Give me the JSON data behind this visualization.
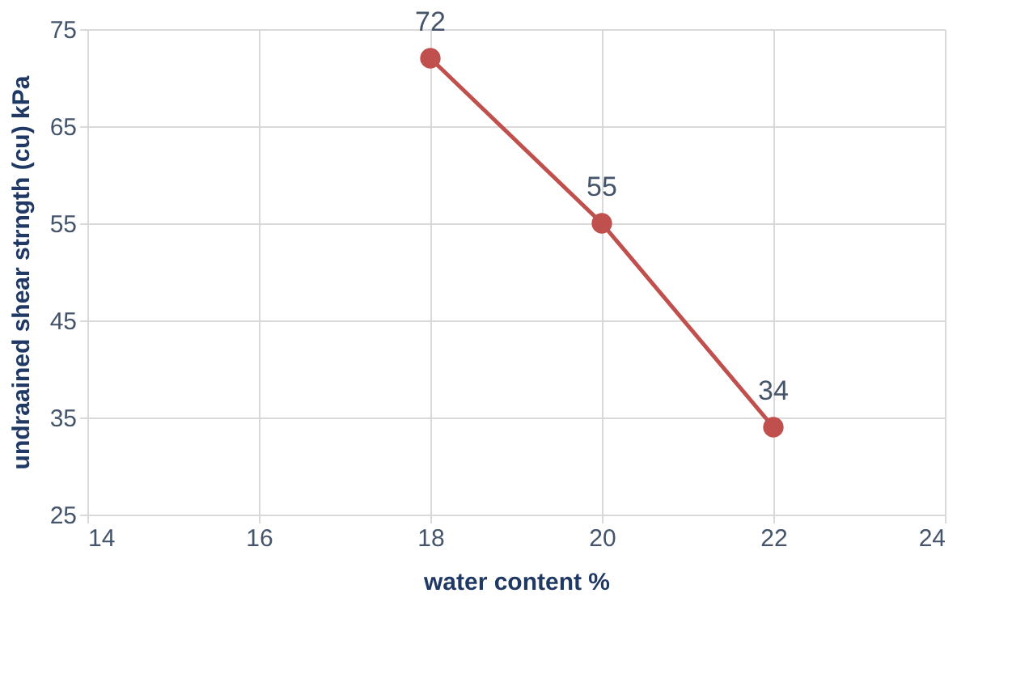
{
  "chart_data": {
    "type": "line",
    "xlabel": "water content %",
    "ylabel": "undraained shear strngth (cu) kPa",
    "x": [
      18,
      20,
      22
    ],
    "series": [
      {
        "color": "#c0504d",
        "values": [
          72,
          55,
          34
        ]
      }
    ],
    "xlim": [
      14,
      24
    ],
    "xticks": [
      14,
      16,
      18,
      20,
      22,
      24
    ],
    "ylim": [
      25,
      75
    ],
    "yticks": [
      25,
      35,
      45,
      55,
      65,
      75
    ],
    "grid": true,
    "marker": "circle",
    "line_style": "solid",
    "data_labels": true
  }
}
